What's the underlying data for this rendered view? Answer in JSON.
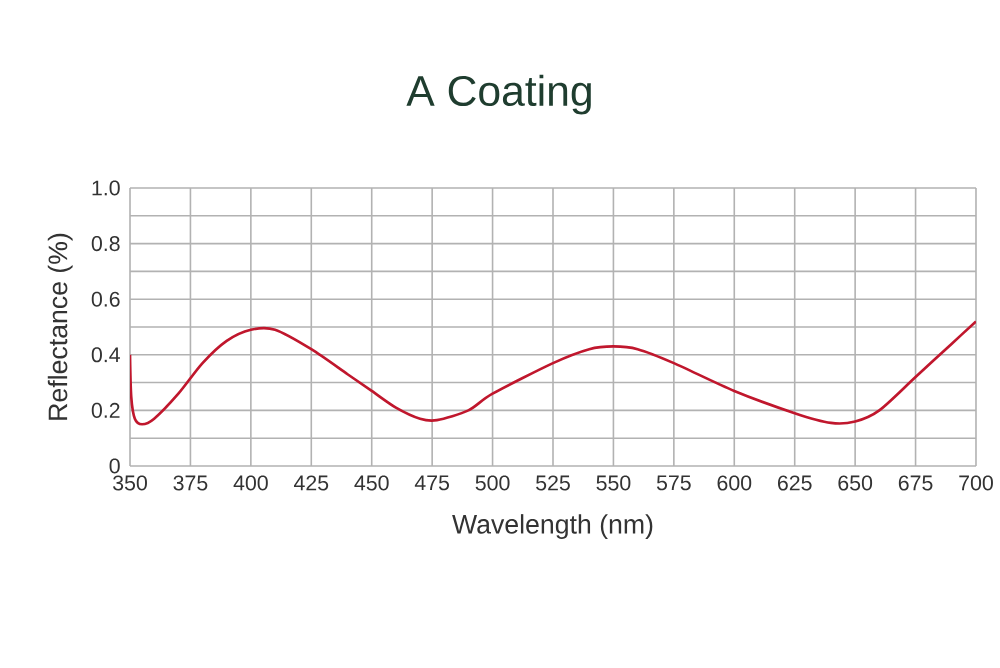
{
  "chart_data": {
    "type": "line",
    "title": "A Coating",
    "xlabel": "Wavelength (nm)",
    "ylabel": "Reflectance (%)",
    "x": [
      350,
      350.5,
      352,
      355,
      360,
      370,
      380,
      390,
      400,
      410,
      425,
      440,
      450,
      460,
      470,
      477,
      490,
      500,
      525,
      540,
      550,
      560,
      575,
      600,
      625,
      640,
      650,
      660,
      675,
      690,
      700
    ],
    "series": [
      {
        "color": "#c0172d",
        "values": [
          0.4,
          0.25,
          0.17,
          0.15,
          0.17,
          0.26,
          0.37,
          0.45,
          0.49,
          0.49,
          0.42,
          0.33,
          0.27,
          0.21,
          0.17,
          0.165,
          0.2,
          0.26,
          0.37,
          0.42,
          0.43,
          0.42,
          0.37,
          0.27,
          0.19,
          0.155,
          0.16,
          0.2,
          0.32,
          0.44,
          0.52
        ]
      }
    ],
    "xlim": [
      350,
      700
    ],
    "ylim": [
      0,
      1.0
    ],
    "xticks": [
      350,
      375,
      400,
      425,
      450,
      475,
      500,
      525,
      550,
      575,
      600,
      625,
      650,
      675,
      700
    ],
    "yticks": [
      0,
      {
        "value": 0.1,
        "label": null
      },
      0.2,
      {
        "value": 0.3,
        "label": null
      },
      0.4,
      {
        "value": 0.5,
        "label": null
      },
      0.6,
      {
        "value": 0.7,
        "label": null
      },
      0.8,
      {
        "value": 0.9,
        "label": null
      },
      {
        "value": 1.0,
        "label": "1.0"
      }
    ],
    "grid": true,
    "marker": "none",
    "line_style": "solid"
  }
}
